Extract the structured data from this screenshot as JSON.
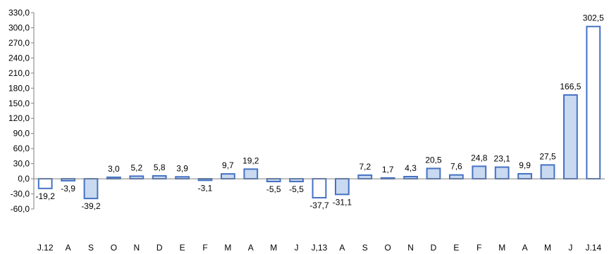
{
  "chart_data": {
    "type": "bar",
    "title": "",
    "xlabel": "",
    "ylabel": "",
    "ylim": [
      -60,
      330
    ],
    "ytick_step": 30,
    "ytick_labels": [
      "-60,0",
      "-30,0",
      "0,0",
      "30,0",
      "60,0",
      "90,0",
      "120,0",
      "150,0",
      "180,0",
      "210,0",
      "240,0",
      "270,0",
      "300,0",
      "330,0"
    ],
    "categories": [
      "J.12",
      "A",
      "S",
      "O",
      "N",
      "D",
      "E",
      "F",
      "M",
      "A",
      "M",
      "J",
      "J,13",
      "A",
      "S",
      "O",
      "N",
      "D",
      "E",
      "F",
      "M",
      "A",
      "M",
      "J",
      "J.14"
    ],
    "values": [
      -19.2,
      -3.9,
      -39.2,
      3.0,
      5.2,
      5.8,
      3.9,
      -3.1,
      9.7,
      19.2,
      -5.5,
      -5.5,
      -37.7,
      -31.1,
      7.2,
      1.7,
      4.3,
      20.5,
      7.6,
      24.8,
      23.1,
      9.9,
      27.5,
      166.5,
      302.5
    ],
    "value_labels": [
      "-19,2",
      "-3,9",
      "-39,2",
      "3,0",
      "5,2",
      "5,8",
      "3,9",
      "-3,1",
      "9,7",
      "19,2",
      "-5,5",
      "-5,5",
      "-37,7",
      "-31,1",
      "7,2",
      "1,7",
      "4,3",
      "20,5",
      "7,6",
      "24,8",
      "23,1",
      "9,9",
      "27,5",
      "166,5",
      "302,5"
    ],
    "hollow_bars": [
      0,
      12,
      24
    ],
    "grid": false,
    "legend": "none",
    "colors": {
      "bar_fill": "#c9d9f0",
      "bar_stroke": "#4472c4",
      "hollow_fill": "#ffffff",
      "axis": "#7f7f7f"
    }
  }
}
